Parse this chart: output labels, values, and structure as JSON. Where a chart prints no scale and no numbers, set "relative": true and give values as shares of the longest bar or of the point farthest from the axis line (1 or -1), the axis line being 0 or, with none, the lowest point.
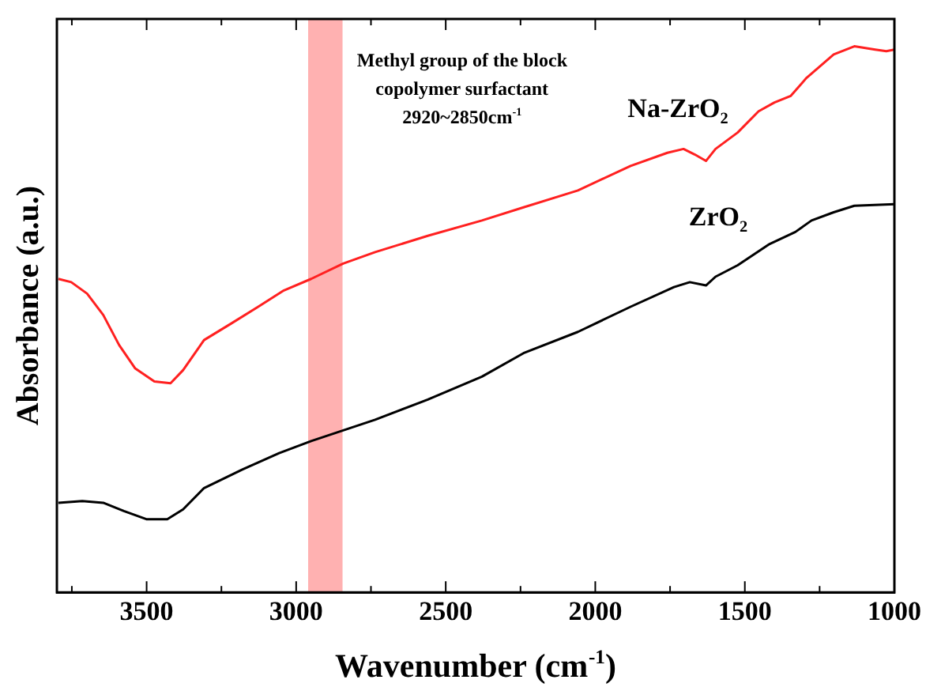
{
  "chart_data": {
    "type": "line",
    "xlabel": "Wavenumber (cm$^{-1}$)",
    "ylabel": "Absorbance (a.u.)",
    "relative": true,
    "legend": false,
    "grid": false,
    "marker": "none",
    "line_style": "solid",
    "xlim": [
      3800,
      1000
    ],
    "xticks": [
      {
        "value": 3750,
        "label": null
      },
      3500,
      {
        "value": 3250,
        "label": null
      },
      3000,
      {
        "value": 2750,
        "label": null
      },
      2500,
      {
        "value": 2250,
        "label": null
      },
      2000,
      {
        "value": 1750,
        "label": null
      },
      1500,
      {
        "value": 1250,
        "label": null
      },
      1000
    ],
    "bands": [
      {
        "axis": "x",
        "from": 2960,
        "to": 2845,
        "color": "#ff2020",
        "label": "Methyl group of the block\ncopolymer surfactant\n2920~2850cm$^{-1}$"
      }
    ],
    "series": [
      {
        "name": "Na-ZrO$_{2}$",
        "color": "#ff2020",
        "x": [
          3795,
          3752,
          3699,
          3645,
          3592,
          3538,
          3474,
          3420,
          3378,
          3308,
          3218,
          3127,
          3041,
          2950,
          2843,
          2736,
          2560,
          2379,
          2240,
          2058,
          1882,
          1759,
          1705,
          1668,
          1630,
          1598,
          1524,
          1454,
          1401,
          1347,
          1294,
          1203,
          1134,
          1064,
          1027,
          1000
        ],
        "values": [
          0.574,
          0.568,
          0.547,
          0.508,
          0.453,
          0.41,
          0.386,
          0.383,
          0.407,
          0.462,
          0.492,
          0.523,
          0.553,
          0.574,
          0.602,
          0.623,
          0.653,
          0.681,
          0.705,
          0.736,
          0.781,
          0.805,
          0.812,
          0.802,
          0.79,
          0.812,
          0.842,
          0.881,
          0.897,
          0.909,
          0.942,
          0.985,
          1,
          0.994,
          0.991,
          0.994
        ]
      },
      {
        "name": "ZrO$_{2}$",
        "color": "#000000",
        "x": [
          3795,
          3715,
          3645,
          3576,
          3501,
          3431,
          3378,
          3308,
          3180,
          3057,
          2950,
          2736,
          2560,
          2379,
          2240,
          2058,
          1882,
          1737,
          1684,
          1630,
          1598,
          1524,
          1417,
          1331,
          1277,
          1203,
          1134,
          1000
        ],
        "values": [
          0.164,
          0.167,
          0.164,
          0.149,
          0.134,
          0.134,
          0.152,
          0.191,
          0.225,
          0.255,
          0.277,
          0.316,
          0.353,
          0.395,
          0.438,
          0.477,
          0.523,
          0.559,
          0.568,
          0.562,
          0.578,
          0.599,
          0.638,
          0.66,
          0.681,
          0.696,
          0.708,
          0.711
        ]
      }
    ]
  }
}
